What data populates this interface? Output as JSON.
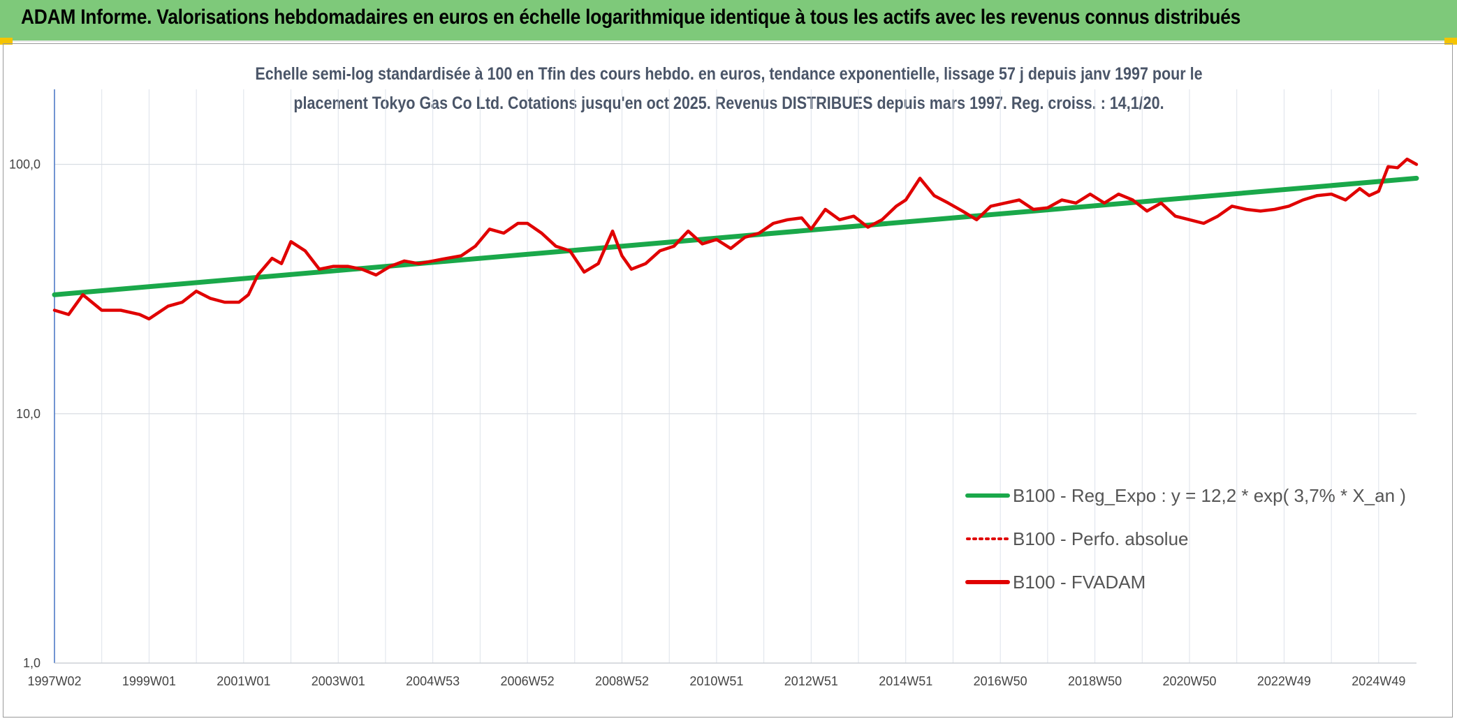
{
  "header": {
    "title": "ADAM Informe. Valorisations hebdomadaires en euros en échelle logarithmique identique à tous les actifs avec les revenus connus distribués"
  },
  "chart_data": {
    "type": "line",
    "title_line1": "Echelle semi-log standardisée à 100 en Tfin des cours hebdo. en euros, tendance exponentielle, lissage 57 j depuis janv 1997 pour le",
    "title_line2": "placement Tokyo Gas Co Ltd. Cotations jusqu'en oct 2025. Revenus DISTRIBUES depuis mars 1997. Reg. croiss. : 14,1/20.",
    "y_scale": "log",
    "ylim": [
      1,
      200
    ],
    "y_ticks": [
      {
        "value": 1,
        "label": "1,0"
      },
      {
        "value": 10,
        "label": "10,0"
      },
      {
        "value": 100,
        "label": "100,0"
      }
    ],
    "x_range": [
      1997.0,
      2025.8
    ],
    "x_ticks": [
      {
        "x": 1997.0,
        "label": "1997W02"
      },
      {
        "x": 1999.0,
        "label": "1999W01"
      },
      {
        "x": 2001.0,
        "label": "2001W01"
      },
      {
        "x": 2003.0,
        "label": "2003W01"
      },
      {
        "x": 2005.0,
        "label": "2004W53"
      },
      {
        "x": 2007.0,
        "label": "2006W52"
      },
      {
        "x": 2009.0,
        "label": "2008W52"
      },
      {
        "x": 2011.0,
        "label": "2010W51"
      },
      {
        "x": 2013.0,
        "label": "2012W51"
      },
      {
        "x": 2015.0,
        "label": "2014W51"
      },
      {
        "x": 2017.0,
        "label": "2016W50"
      },
      {
        "x": 2019.0,
        "label": "2018W50"
      },
      {
        "x": 2021.0,
        "label": "2020W50"
      },
      {
        "x": 2023.0,
        "label": "2022W49"
      },
      {
        "x": 2025.0,
        "label": "2024W49"
      }
    ],
    "grid": true,
    "legend_position": "bottom-right",
    "series": [
      {
        "name": "B100 - Reg_Expo : y = 12,2 * exp( 3,7% *  X_an )",
        "color": "#1aa84a",
        "style": "solid",
        "x": [
          1997.0,
          2025.8
        ],
        "y": [
          30.0,
          88.0
        ]
      },
      {
        "name": "B100 - Perfo. absolue",
        "color": "#e00000",
        "style": "dotted",
        "x": [],
        "y": []
      },
      {
        "name": "B100 - FVADAM",
        "color": "#e00000",
        "style": "solid",
        "x": [
          1997.0,
          1997.3,
          1997.6,
          1998.0,
          1998.4,
          1998.8,
          1999.0,
          1999.4,
          1999.7,
          2000.0,
          2000.3,
          2000.6,
          2000.9,
          2001.1,
          2001.3,
          2001.6,
          2001.8,
          2002.0,
          2002.3,
          2002.6,
          2002.9,
          2003.2,
          2003.5,
          2003.8,
          2004.1,
          2004.4,
          2004.7,
          2005.0,
          2005.3,
          2005.6,
          2005.9,
          2006.2,
          2006.5,
          2006.8,
          2007.0,
          2007.3,
          2007.6,
          2007.9,
          2008.2,
          2008.5,
          2008.8,
          2009.0,
          2009.2,
          2009.5,
          2009.8,
          2010.1,
          2010.4,
          2010.7,
          2011.0,
          2011.3,
          2011.6,
          2011.9,
          2012.2,
          2012.5,
          2012.8,
          2013.0,
          2013.3,
          2013.6,
          2013.9,
          2014.2,
          2014.5,
          2014.8,
          2015.0,
          2015.3,
          2015.6,
          2015.9,
          2016.2,
          2016.5,
          2016.8,
          2017.1,
          2017.4,
          2017.7,
          2018.0,
          2018.3,
          2018.6,
          2018.9,
          2019.2,
          2019.5,
          2019.8,
          2020.1,
          2020.4,
          2020.7,
          2021.0,
          2021.3,
          2021.6,
          2021.9,
          2022.2,
          2022.5,
          2022.8,
          2023.1,
          2023.4,
          2023.7,
          2024.0,
          2024.3,
          2024.6,
          2024.8,
          2025.0,
          2025.2,
          2025.4,
          2025.6,
          2025.8
        ],
        "y": [
          26,
          25,
          30,
          26,
          26,
          25,
          24,
          27,
          28,
          31,
          29,
          28,
          28,
          30,
          36,
          42,
          40,
          49,
          45,
          38,
          39,
          39,
          38,
          36,
          39,
          41,
          40,
          41,
          42,
          43,
          47,
          55,
          53,
          58,
          58,
          53,
          47,
          45,
          37,
          40,
          54,
          43,
          38,
          40,
          45,
          47,
          54,
          48,
          50,
          46,
          51,
          53,
          58,
          60,
          61,
          55,
          66,
          60,
          62,
          56,
          60,
          68,
          72,
          88,
          75,
          70,
          65,
          60,
          68,
          70,
          72,
          66,
          67,
          72,
          70,
          76,
          70,
          76,
          72,
          65,
          70,
          62,
          60,
          58,
          62,
          68,
          66,
          65,
          66,
          68,
          72,
          75,
          76,
          72,
          80,
          75,
          78,
          98,
          97,
          105,
          100
        ]
      }
    ]
  }
}
